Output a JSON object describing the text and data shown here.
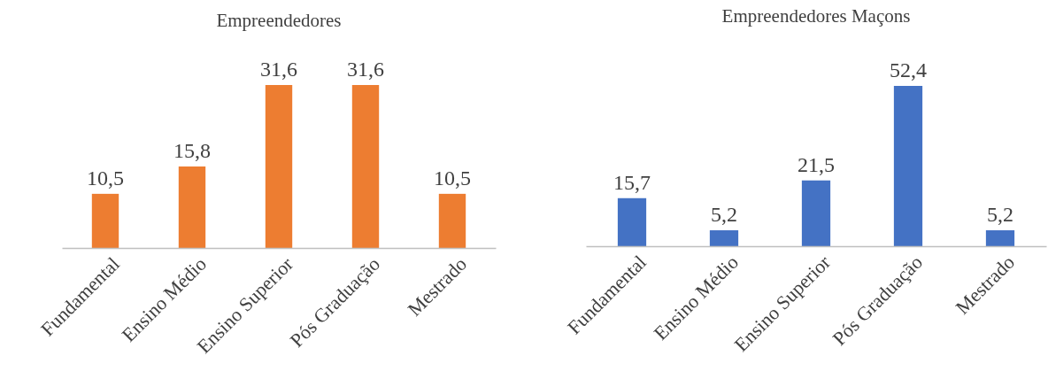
{
  "chart_data": [
    {
      "type": "bar",
      "title": "Empreendedores",
      "categories": [
        "Fundamental",
        "Ensino Médio",
        "Ensino Superior",
        "Pós Graduação",
        "Mestrado"
      ],
      "values": [
        10.5,
        15.8,
        31.6,
        31.6,
        10.5
      ],
      "value_labels": [
        "10,5",
        "15,8",
        "31,6",
        "31,6",
        "10,5"
      ],
      "color": "#ed7d31",
      "tick_labels": "x"
    },
    {
      "type": "bar",
      "title": "Empreendedores Maçons",
      "categories": [
        "Fundamental",
        "Ensino Médio",
        "Ensino Superior",
        "Pós Graduação",
        "Mestrado"
      ],
      "values": [
        15.7,
        5.2,
        21.5,
        52.4,
        5.2
      ],
      "value_labels": [
        "15,7",
        "5,2",
        "21,5",
        "52,4",
        "5,2"
      ],
      "color": "#4472c4",
      "tick_labels": "x"
    }
  ]
}
